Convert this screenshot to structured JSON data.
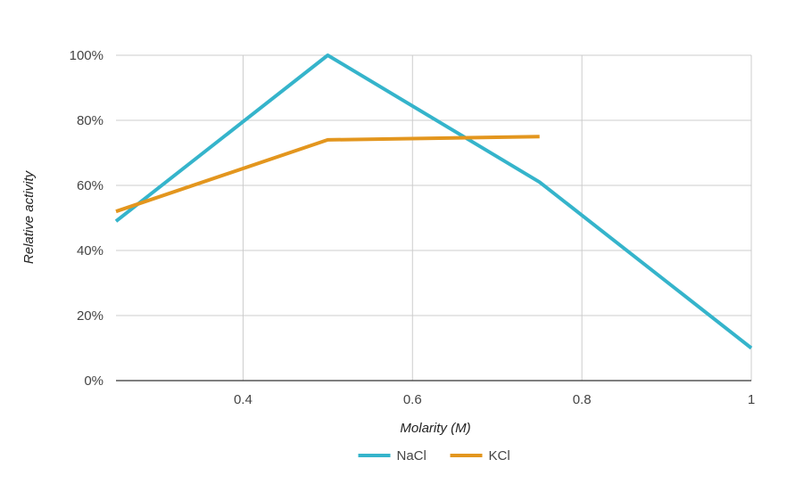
{
  "chart_data": {
    "type": "line",
    "title": "",
    "xlabel": "Molarity (M)",
    "ylabel": "Relative activity",
    "xlim": [
      0.25,
      1.0
    ],
    "ylim": [
      0,
      100
    ],
    "x_ticks": [
      0.4,
      0.6,
      0.8,
      1.0
    ],
    "x_tick_labels": [
      "0.4",
      "0.6",
      "0.8",
      "1"
    ],
    "y_ticks": [
      0,
      20,
      40,
      60,
      80,
      100
    ],
    "y_tick_labels": [
      "0%",
      "20%",
      "40%",
      "60%",
      "80%",
      "100%"
    ],
    "grid": true,
    "legend_position": "bottom",
    "series": [
      {
        "name": "NaCl",
        "color": "#35B4CB",
        "x": [
          0.25,
          0.5,
          0.75,
          1.0
        ],
        "values": [
          49,
          100,
          61,
          10
        ]
      },
      {
        "name": "KCl",
        "color": "#E3961E",
        "x": [
          0.25,
          0.5,
          0.75
        ],
        "values": [
          52,
          74,
          75
        ]
      }
    ]
  }
}
